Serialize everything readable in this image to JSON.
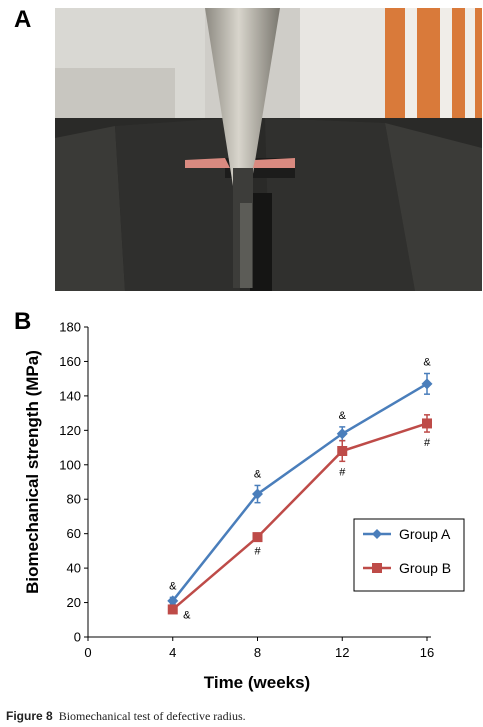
{
  "panels": {
    "a": "A",
    "b": "B"
  },
  "photo": {
    "icon": "biomechanical-test-photo"
  },
  "chart_data": {
    "type": "line",
    "x": [
      4,
      8,
      12,
      16
    ],
    "xlabel": "Time (weeks)",
    "ylabel": "Biomechanical strength (MPa)",
    "xlim": [
      0,
      16
    ],
    "ylim": [
      0,
      180
    ],
    "xticks": [
      "0",
      "4",
      "8",
      "12",
      "16"
    ],
    "yticks": [
      "0",
      "20",
      "40",
      "60",
      "80",
      "100",
      "120",
      "140",
      "160",
      "180"
    ],
    "grid": false,
    "legend_position": "right",
    "series": [
      {
        "name": "Group A",
        "values": [
          21,
          83,
          118,
          147
        ],
        "errors": [
          2,
          5,
          4,
          6
        ],
        "color": "#4a7ebb",
        "marker": "diamond",
        "annotations": [
          "&",
          "&",
          "&",
          "&"
        ]
      },
      {
        "name": "Group B",
        "values": [
          16,
          58,
          108,
          124
        ],
        "errors": [
          2,
          2,
          6,
          5
        ],
        "color": "#be4b48",
        "marker": "square",
        "annotations": [
          "&",
          "#",
          "#",
          "#"
        ]
      }
    ]
  },
  "caption": {
    "label": "Figure 8",
    "text": "Biomechanical test of defective radius."
  }
}
